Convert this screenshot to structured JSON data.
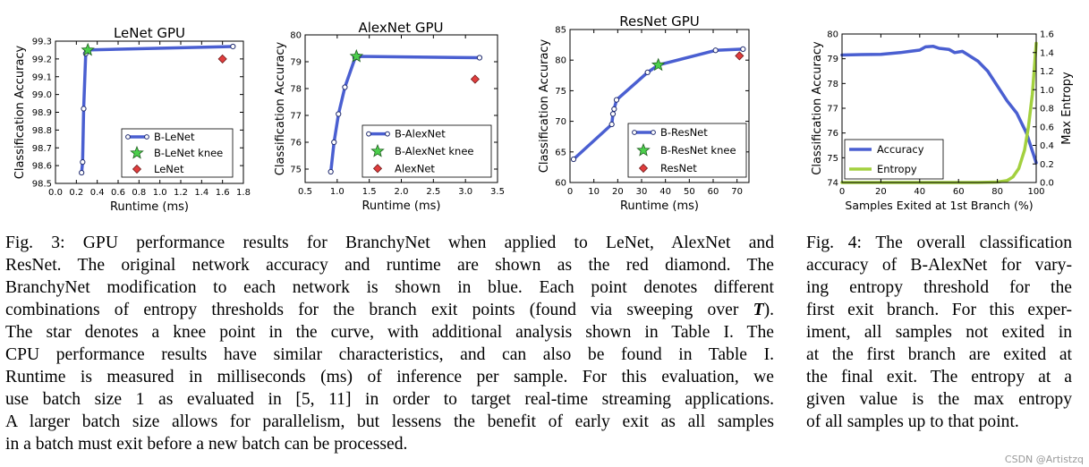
{
  "chart_data": [
    {
      "type": "line",
      "title": "LeNet GPU",
      "xlabel": "Runtime (ms)",
      "ylabel": "Classification Accuracy",
      "xlim": [
        0.0,
        1.8
      ],
      "ylim": [
        98.5,
        99.3
      ],
      "xticks": [
        "0.0",
        "0.2",
        "0.4",
        "0.6",
        "0.8",
        "1.0",
        "1.2",
        "1.4",
        "1.6",
        "1.8"
      ],
      "yticks": [
        "98.5",
        "98.6",
        "98.7",
        "98.8",
        "98.9",
        "99.0",
        "99.1",
        "99.2",
        "99.3"
      ],
      "xtick_values": [
        0.0,
        0.2,
        0.4,
        0.6,
        0.8,
        1.0,
        1.2,
        1.4,
        1.6,
        1.8
      ],
      "ytick_values": [
        98.5,
        98.6,
        98.7,
        98.8,
        98.9,
        99.0,
        99.1,
        99.2,
        99.3
      ],
      "series": [
        {
          "name": "B-LeNet",
          "kind": "line",
          "color": "#4a5fd1",
          "x": [
            0.25,
            0.26,
            0.27,
            0.29,
            0.3,
            1.7
          ],
          "y": [
            98.56,
            98.62,
            98.92,
            99.23,
            99.25,
            99.27
          ]
        },
        {
          "name": "B-LeNet knee",
          "kind": "star",
          "color": "#4ccf4c",
          "x": [
            0.31
          ],
          "y": [
            99.25
          ]
        },
        {
          "name": "LeNet",
          "kind": "diamond",
          "color": "#e03d3d",
          "x": [
            1.6
          ],
          "y": [
            99.2
          ]
        }
      ],
      "legend": "lower-right"
    },
    {
      "type": "line",
      "title": "AlexNet GPU",
      "xlabel": "Runtime (ms)",
      "ylabel": "Classification Accuracy",
      "xlim": [
        0.5,
        3.5
      ],
      "ylim": [
        74.5,
        80
      ],
      "xticks": [
        "0.5",
        "1.0",
        "1.5",
        "2.0",
        "2.5",
        "3.0",
        "3.5"
      ],
      "yticks": [
        "75",
        "76",
        "77",
        "78",
        "79",
        "80"
      ],
      "xtick_values": [
        0.5,
        1.0,
        1.5,
        2.0,
        2.5,
        3.0,
        3.5
      ],
      "ytick_values": [
        75,
        76,
        77,
        78,
        79,
        80
      ],
      "series": [
        {
          "name": "B-AlexNet",
          "kind": "line",
          "color": "#4a5fd1",
          "x": [
            0.9,
            0.95,
            1.02,
            1.12,
            1.28,
            1.33,
            3.22
          ],
          "y": [
            74.9,
            76.0,
            77.05,
            78.05,
            79.15,
            79.2,
            79.15
          ]
        },
        {
          "name": "B-AlexNet knee",
          "kind": "star",
          "color": "#4ccf4c",
          "x": [
            1.3
          ],
          "y": [
            79.2
          ]
        },
        {
          "name": "AlexNet",
          "kind": "diamond",
          "color": "#e03d3d",
          "x": [
            3.15
          ],
          "y": [
            78.35
          ]
        }
      ],
      "legend": "lower-right"
    },
    {
      "type": "line",
      "title": "ResNet GPU",
      "xlabel": "Runtime (ms)",
      "ylabel": "Classification Accuracy",
      "xlim": [
        0,
        75
      ],
      "ylim": [
        60,
        85
      ],
      "xticks": [
        "0",
        "10",
        "20",
        "30",
        "40",
        "50",
        "60",
        "70"
      ],
      "yticks": [
        "60",
        "65",
        "70",
        "75",
        "80",
        "85"
      ],
      "xtick_values": [
        0,
        10,
        20,
        30,
        40,
        50,
        60,
        70
      ],
      "ytick_values": [
        60,
        65,
        70,
        75,
        80,
        85
      ],
      "series": [
        {
          "name": "B-ResNet",
          "kind": "line",
          "color": "#4a5fd1",
          "x": [
            1.5,
            17.5,
            18.0,
            18.5,
            19.5,
            32.5,
            37.0,
            61.0,
            72.5
          ],
          "y": [
            63.8,
            69.5,
            71.2,
            72.0,
            73.5,
            78.0,
            79.2,
            81.6,
            81.8
          ]
        },
        {
          "name": "B-ResNet knee",
          "kind": "star",
          "color": "#4ccf4c",
          "x": [
            37.0
          ],
          "y": [
            79.2
          ]
        },
        {
          "name": "ResNet",
          "kind": "diamond",
          "color": "#e03d3d",
          "x": [
            71.0
          ],
          "y": [
            80.7
          ]
        }
      ],
      "legend": "lower-right"
    },
    {
      "type": "line",
      "xlabel": "Samples Exited at 1st Branch (%)",
      "ylabel": "Classification Accuracy",
      "y2label": "Max Entropy",
      "xlim": [
        0,
        100
      ],
      "ylim": [
        74,
        80
      ],
      "y2lim": [
        0.0,
        1.6
      ],
      "xticks": [
        "0",
        "20",
        "40",
        "60",
        "80",
        "100"
      ],
      "yticks": [
        "74",
        "75",
        "76",
        "77",
        "78",
        "79",
        "80"
      ],
      "y2ticks": [
        "0.0",
        "0.2",
        "0.4",
        "0.6",
        "0.8",
        "1.0",
        "1.2",
        "1.4",
        "1.6"
      ],
      "xtick_values": [
        0,
        20,
        40,
        60,
        80,
        100
      ],
      "ytick_values": [
        74,
        75,
        76,
        77,
        78,
        79,
        80
      ],
      "y2tick_values": [
        0.0,
        0.2,
        0.4,
        0.6,
        0.8,
        1.0,
        1.2,
        1.4,
        1.6
      ],
      "series": [
        {
          "name": "Accuracy",
          "axis": "left",
          "color": "#4a5fd1",
          "x": [
            0,
            10,
            20,
            30,
            35,
            40,
            43,
            47,
            50,
            55,
            58,
            62,
            65,
            70,
            75,
            80,
            85,
            90,
            95,
            100
          ],
          "y": [
            79.15,
            79.17,
            79.18,
            79.25,
            79.3,
            79.35,
            79.48,
            79.5,
            79.42,
            79.38,
            79.25,
            79.3,
            79.15,
            78.9,
            78.5,
            77.9,
            77.3,
            76.8,
            76.0,
            74.8
          ]
        },
        {
          "name": "Entropy",
          "axis": "right",
          "color": "#a3d03f",
          "x": [
            0,
            20,
            40,
            60,
            70,
            80,
            85,
            88,
            91,
            94,
            96,
            98,
            100
          ],
          "y": [
            0.0,
            0.0,
            0.0,
            0.0,
            0.0,
            0.005,
            0.02,
            0.06,
            0.15,
            0.35,
            0.6,
            0.95,
            1.5
          ]
        }
      ],
      "legend": "lower-left"
    }
  ],
  "captions": {
    "fig3": [
      "Fig. 3: GPU performance results for BranchyNet when applied to LeNet, AlexNet and",
      "ResNet. The original network accuracy and runtime are shown as the red diamond. The",
      "BranchyNet modification to each network is shown in blue. Each point denotes different",
      "combinations of entropy thresholds for the branch exit points (found via sweeping over T).",
      "The star denotes a knee point in the curve, with additional analysis shown in Table I. The",
      "CPU performance results have similar characteristics, and can also be found in Table I.",
      "Runtime is measured in milliseconds (ms) of inference per sample. For this evaluation, we",
      "use batch size 1 as evaluated in [5, 11] in order to target real-time streaming applications.",
      "A larger batch size allows for parallelism, but lessens the benefit of early exit as all samples",
      "in a batch must exit before a new batch can be processed."
    ],
    "fig4": [
      "Fig. 4: The overall classification",
      "accuracy of B-AlexNet for vary-",
      "ing entropy threshold for the",
      "first exit branch. For this exper-",
      "iment, all samples not exited in",
      "at the first branch are exited at",
      "the final exit. The entropy at a",
      "given value is the max entropy",
      "of all samples up to that point."
    ]
  },
  "watermark": "CSDN @Artistzq"
}
